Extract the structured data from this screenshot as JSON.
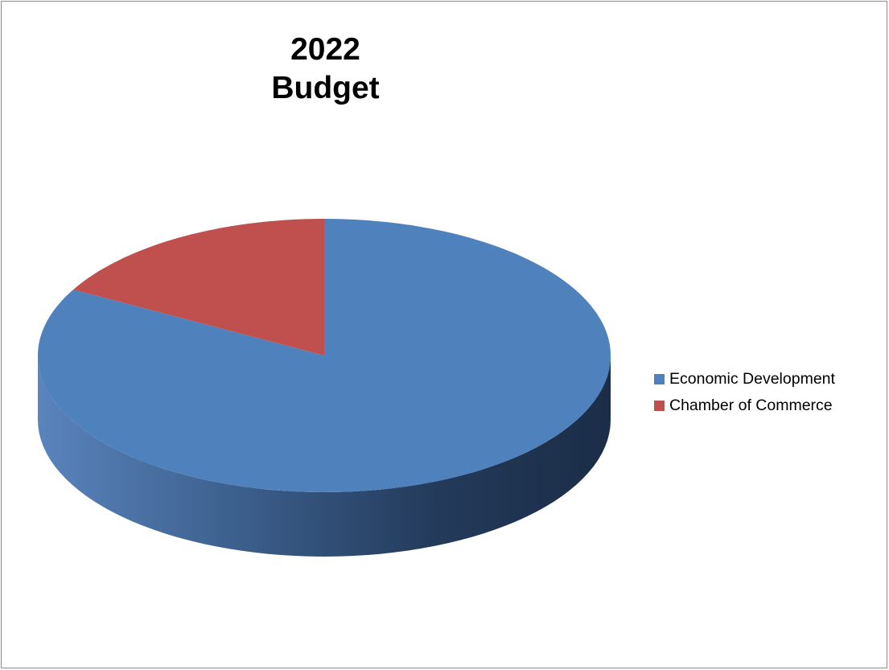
{
  "chart_data": {
    "type": "pie",
    "title_lines": [
      "2022",
      "Budget"
    ],
    "categories": [
      "Economic Development",
      "Chamber of Commerce"
    ],
    "values": [
      83,
      17
    ],
    "colors": [
      "#4f81bd",
      "#c0504d"
    ],
    "three_d": true,
    "legend_position": "right"
  }
}
